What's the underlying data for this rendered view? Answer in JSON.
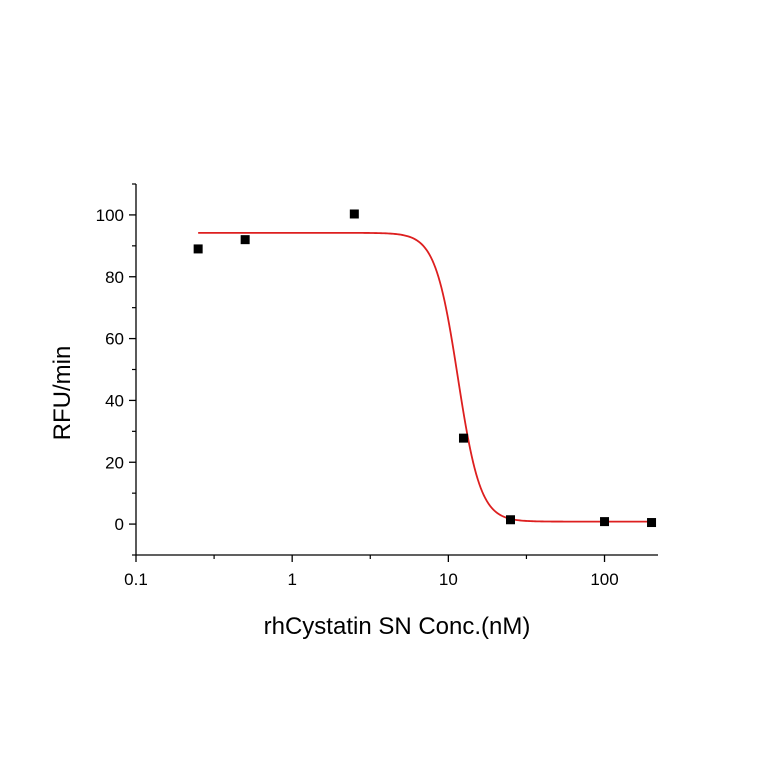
{
  "chart_data": {
    "type": "scatter",
    "title": "",
    "xlabel": "rhCystatin SN Conc.(nM)",
    "ylabel": "RFU/min",
    "xscale": "log",
    "xlim": [
      0.1,
      220
    ],
    "ylim": [
      -10,
      110
    ],
    "x_ticks": [
      0.1,
      1,
      10,
      100
    ],
    "x_tick_labels": [
      "0.1",
      "1",
      "10",
      "100"
    ],
    "y_ticks": [
      0,
      20,
      40,
      60,
      80,
      100
    ],
    "y_tick_labels": [
      "0",
      "20",
      "40",
      "60",
      "80",
      "100"
    ],
    "grid": false,
    "legend": "none",
    "series": [
      {
        "type": "scatter",
        "marker": "square",
        "color": "#000000",
        "x": [
          0.25,
          0.5,
          2.5,
          12.5,
          25,
          100,
          200
        ],
        "y": [
          89.0,
          92.0,
          100.3,
          27.8,
          1.4,
          0.8,
          0.5
        ]
      },
      {
        "type": "line",
        "fit": "4-parameter logistic",
        "color": "#dd1f1f",
        "top": 94.2,
        "bottom": 0.8,
        "ic50": 11.5,
        "hill": 6.0,
        "x_range": [
          0.25,
          200
        ]
      }
    ]
  }
}
